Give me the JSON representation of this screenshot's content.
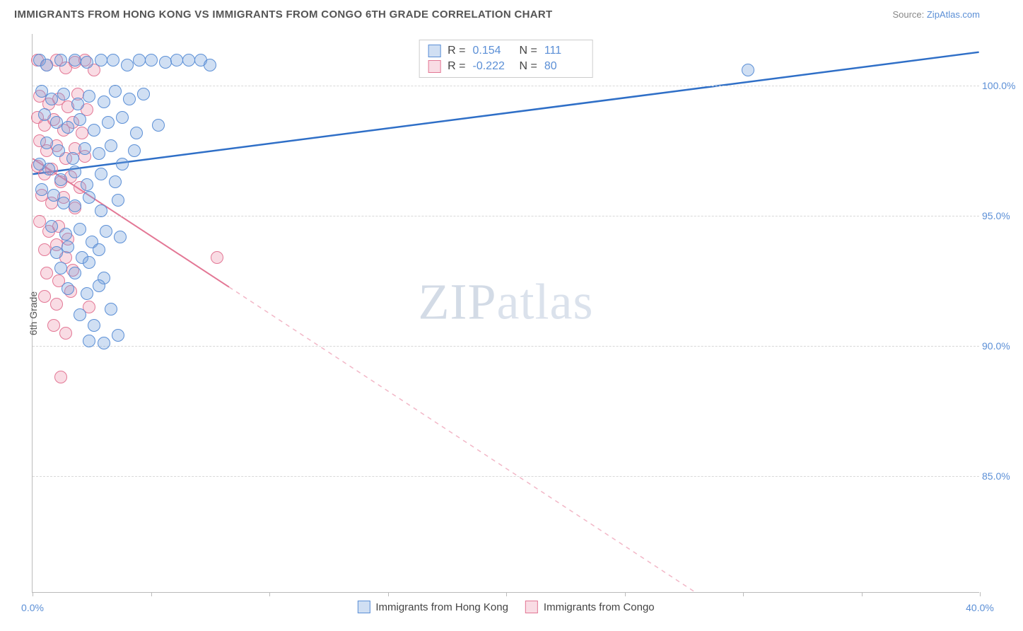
{
  "header": {
    "title": "IMMIGRANTS FROM HONG KONG VS IMMIGRANTS FROM CONGO 6TH GRADE CORRELATION CHART",
    "source_prefix": "Source: ",
    "source_link": "ZipAtlas.com"
  },
  "watermark": {
    "bold": "ZIP",
    "thin": "atlas"
  },
  "chart": {
    "type": "scatter",
    "y_axis_title": "6th Grade",
    "xlim": [
      0,
      40
    ],
    "ylim": [
      80.5,
      102.0
    ],
    "x_ticks": [
      0,
      5,
      10,
      15,
      20,
      25,
      30,
      35,
      40
    ],
    "x_tick_labels": {
      "0": "0.0%",
      "40": "40.0%"
    },
    "y_ticks": [
      85.0,
      90.0,
      95.0,
      100.0
    ],
    "y_tick_labels": [
      "85.0%",
      "90.0%",
      "95.0%",
      "100.0%"
    ],
    "grid_color": "#d8d8d8",
    "background_color": "#ffffff",
    "series": [
      {
        "key": "s1",
        "name": "Immigrants from Hong Kong",
        "color_fill": "rgba(121,163,220,0.35)",
        "color_stroke": "#5b8fd6",
        "R": "0.154",
        "N": "111",
        "regression": {
          "x1": 0,
          "y1": 96.6,
          "x2": 40,
          "y2": 101.3,
          "dash": false
        },
        "points": [
          [
            0.3,
            101.0
          ],
          [
            0.6,
            100.8
          ],
          [
            1.2,
            101.0
          ],
          [
            1.8,
            101.0
          ],
          [
            2.3,
            100.9
          ],
          [
            2.9,
            101.0
          ],
          [
            3.4,
            101.0
          ],
          [
            4.0,
            100.8
          ],
          [
            4.5,
            101.0
          ],
          [
            5.0,
            101.0
          ],
          [
            5.6,
            100.9
          ],
          [
            6.1,
            101.0
          ],
          [
            6.6,
            101.0
          ],
          [
            7.1,
            101.0
          ],
          [
            7.5,
            100.8
          ],
          [
            0.4,
            99.8
          ],
          [
            0.8,
            99.5
          ],
          [
            1.3,
            99.7
          ],
          [
            1.9,
            99.3
          ],
          [
            2.4,
            99.6
          ],
          [
            3.0,
            99.4
          ],
          [
            3.5,
            99.8
          ],
          [
            4.1,
            99.5
          ],
          [
            4.7,
            99.7
          ],
          [
            0.5,
            98.9
          ],
          [
            1.0,
            98.6
          ],
          [
            1.5,
            98.4
          ],
          [
            2.0,
            98.7
          ],
          [
            2.6,
            98.3
          ],
          [
            3.2,
            98.6
          ],
          [
            3.8,
            98.8
          ],
          [
            4.4,
            98.2
          ],
          [
            5.3,
            98.5
          ],
          [
            0.6,
            97.8
          ],
          [
            1.1,
            97.5
          ],
          [
            1.7,
            97.2
          ],
          [
            2.2,
            97.6
          ],
          [
            2.8,
            97.4
          ],
          [
            3.3,
            97.7
          ],
          [
            3.8,
            97.0
          ],
          [
            4.3,
            97.5
          ],
          [
            0.3,
            97.0
          ],
          [
            0.7,
            96.8
          ],
          [
            1.2,
            96.4
          ],
          [
            1.8,
            96.7
          ],
          [
            2.3,
            96.2
          ],
          [
            2.9,
            96.6
          ],
          [
            3.5,
            96.3
          ],
          [
            0.4,
            96.0
          ],
          [
            0.9,
            95.8
          ],
          [
            1.3,
            95.5
          ],
          [
            1.8,
            95.4
          ],
          [
            2.4,
            95.7
          ],
          [
            2.9,
            95.2
          ],
          [
            3.6,
            95.6
          ],
          [
            0.8,
            94.6
          ],
          [
            1.4,
            94.3
          ],
          [
            2.0,
            94.5
          ],
          [
            2.5,
            94.0
          ],
          [
            3.1,
            94.4
          ],
          [
            3.7,
            94.2
          ],
          [
            1.0,
            93.6
          ],
          [
            1.5,
            93.8
          ],
          [
            2.1,
            93.4
          ],
          [
            2.8,
            93.7
          ],
          [
            1.2,
            93.0
          ],
          [
            1.8,
            92.8
          ],
          [
            2.4,
            93.2
          ],
          [
            3.0,
            92.6
          ],
          [
            1.5,
            92.2
          ],
          [
            2.3,
            92.0
          ],
          [
            2.8,
            92.3
          ],
          [
            2.0,
            91.2
          ],
          [
            2.6,
            90.8
          ],
          [
            3.3,
            91.4
          ],
          [
            2.4,
            90.2
          ],
          [
            3.0,
            90.1
          ],
          [
            3.6,
            90.4
          ],
          [
            30.2,
            100.6
          ]
        ]
      },
      {
        "key": "s2",
        "name": "Immigrants from Congo",
        "color_fill": "rgba(235,140,165,0.30)",
        "color_stroke": "#e37795",
        "R": "-0.222",
        "N": "80",
        "regression": {
          "x1": 0,
          "y1": 97.2,
          "x2": 28,
          "y2": 80.5,
          "dash_from_x": 8.3
        },
        "points": [
          [
            0.2,
            101.0
          ],
          [
            0.6,
            100.8
          ],
          [
            1.0,
            101.0
          ],
          [
            1.4,
            100.7
          ],
          [
            1.8,
            100.9
          ],
          [
            2.2,
            101.0
          ],
          [
            2.6,
            100.6
          ],
          [
            0.3,
            99.6
          ],
          [
            0.7,
            99.3
          ],
          [
            1.1,
            99.5
          ],
          [
            1.5,
            99.2
          ],
          [
            1.9,
            99.7
          ],
          [
            2.3,
            99.1
          ],
          [
            0.2,
            98.8
          ],
          [
            0.5,
            98.5
          ],
          [
            0.9,
            98.7
          ],
          [
            1.3,
            98.3
          ],
          [
            1.7,
            98.6
          ],
          [
            2.1,
            98.2
          ],
          [
            0.3,
            97.9
          ],
          [
            0.6,
            97.5
          ],
          [
            1.0,
            97.7
          ],
          [
            1.4,
            97.2
          ],
          [
            1.8,
            97.6
          ],
          [
            2.2,
            97.3
          ],
          [
            0.2,
            96.9
          ],
          [
            0.5,
            96.6
          ],
          [
            0.8,
            96.8
          ],
          [
            1.2,
            96.3
          ],
          [
            1.6,
            96.5
          ],
          [
            2.0,
            96.1
          ],
          [
            0.4,
            95.8
          ],
          [
            0.8,
            95.5
          ],
          [
            1.3,
            95.7
          ],
          [
            1.8,
            95.3
          ],
          [
            0.3,
            94.8
          ],
          [
            0.7,
            94.4
          ],
          [
            1.1,
            94.6
          ],
          [
            1.5,
            94.1
          ],
          [
            0.5,
            93.7
          ],
          [
            1.0,
            93.9
          ],
          [
            1.4,
            93.4
          ],
          [
            0.6,
            92.8
          ],
          [
            1.1,
            92.5
          ],
          [
            1.7,
            92.9
          ],
          [
            0.5,
            91.9
          ],
          [
            1.0,
            91.6
          ],
          [
            1.6,
            92.1
          ],
          [
            2.4,
            91.5
          ],
          [
            0.9,
            90.8
          ],
          [
            1.4,
            90.5
          ],
          [
            1.2,
            88.8
          ],
          [
            7.8,
            93.4
          ]
        ]
      }
    ],
    "bottom_legend": [
      "Immigrants from Hong Kong",
      "Immigrants from Congo"
    ]
  }
}
